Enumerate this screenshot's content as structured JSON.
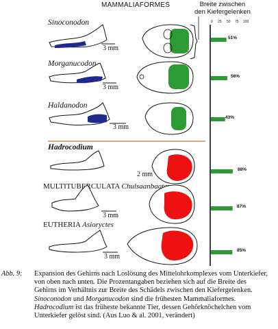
{
  "header": {
    "title": "MAMMALIAFORMES"
  },
  "brace_label": {
    "line1": "Breite zwischen",
    "line2": "den Kiefergelenken"
  },
  "axis": {
    "ticks": [
      "0",
      "25",
      "50",
      "75",
      "100"
    ]
  },
  "rows": [
    {
      "taxon": "Sinoconodon",
      "scale": "3 mm",
      "percent_label": "51%",
      "percent": 51,
      "brain_color": "#2e9a35"
    },
    {
      "taxon": "Morganucodon",
      "scale": "3 mm",
      "percent_label": "56%",
      "percent": 56,
      "brain_color": "#2e9a35"
    },
    {
      "taxon": "Haldanodon",
      "scale": "3 mm",
      "percent_label": "43%",
      "percent": 43,
      "brain_color": "#2e9a35"
    },
    {
      "taxon": "Hadrocodium",
      "scale": "2 mm",
      "percent_label": "88%",
      "percent": 88,
      "brain_color": "#ee1111"
    },
    {
      "group": "MULTITUBERCULATA",
      "taxon": "Chulsaanbaatar",
      "scale": "3 mm",
      "percent_label": "87%",
      "percent": 87,
      "brain_color": "#ee1111"
    },
    {
      "group": "EUTHERIA",
      "taxon": "Asioryctes",
      "scale": "3 mm",
      "percent_label": "85%",
      "percent": 85,
      "brain_color": "#ee1111"
    }
  ],
  "caption": {
    "label": "Abb. 9:",
    "line1": "Expansion des Gehirns nach Loslösung des Mittelohrkomplexes vom Unterkiefer,",
    "line2": "von oben nach unten. Die Prozentangaben beziehen sich auf die Breite des",
    "line3": "Gehirns im Verhältnis zur Breite des Schädels zwischen den Kiefergelenken.",
    "line4_a": "Sinoconodon",
    "line4_b": " und ",
    "line4_c": "Morganucodon",
    "line4_d": " sind die frühesten Mammaliaformes.",
    "line5_a": "Hadrocodium",
    "line5_b": " ist das früheste bekannte Tier, dessen Gehörknöchelchen vom",
    "line6": "Unterkiefer gelöst sind. (Aus Luo & al. 2001, verändert)"
  },
  "colors": {
    "green": "#2e9a35",
    "red": "#ee1111",
    "jaw_blue": "#1f2a8a",
    "divider": "#c8964a"
  }
}
